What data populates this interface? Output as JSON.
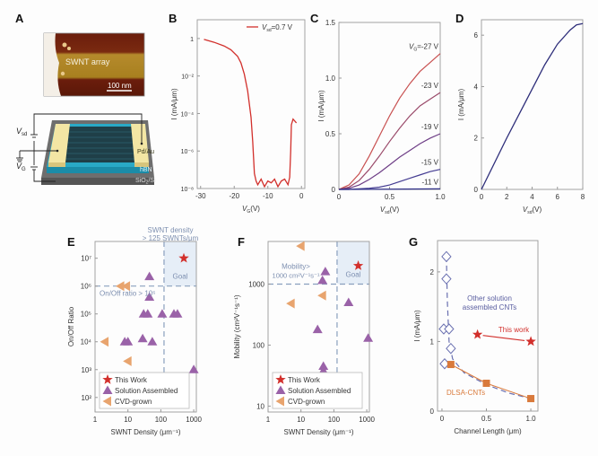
{
  "panels": {
    "A": {
      "letter": "A",
      "afm_label": "SWNT array",
      "scale_bar": "100 nm",
      "device_labels": {
        "vsd": "V",
        "vsd_sub": "sd",
        "vg": "V",
        "vg_sub": "G",
        "electrode": "Pd/Au",
        "dielectric": "hBN",
        "substrate": "SiO",
        "substrate_sub": "2",
        "substrate_rest": "/Si"
      }
    },
    "B": {
      "letter": "B"
    },
    "C": {
      "letter": "C"
    },
    "D": {
      "letter": "D"
    },
    "E": {
      "letter": "E"
    },
    "F": {
      "letter": "F"
    },
    "G": {
      "letter": "G"
    }
  },
  "colors": {
    "red": "#d2302c",
    "purple": "#9a62a8",
    "orange": "#e8a46e",
    "blue": "#6a70b0",
    "goal_fill": "#e6eef7",
    "dash": "#8aa0be",
    "square": "#d97a3c"
  },
  "chart_data": [
    {
      "id": "B",
      "type": "line",
      "xlabel": "V",
      "xlabel_sub": "G",
      "xlabel_unit": "(V)",
      "ylabel": "I (mA/μm)",
      "yscale": "log",
      "xlim": [
        -31,
        1
      ],
      "ylim_exp": [
        -8,
        1
      ],
      "xticks": [
        -30,
        -20,
        -10,
        0
      ],
      "yticks": [
        {
          "exp": 0,
          "label": "1"
        },
        {
          "exp": -2,
          "label": "10⁻²"
        },
        {
          "exp": -4,
          "label": "10⁻⁴"
        },
        {
          "exp": -6,
          "label": "10⁻⁶"
        },
        {
          "exp": -8,
          "label": "10⁻⁸"
        }
      ],
      "legend": "V_sd=0.7 V",
      "legend_text": "=0.7 V",
      "series": [
        {
          "name": "Vsd=0.7 V",
          "x": [
            -29,
            -26,
            -23,
            -21,
            -19,
            -18,
            -17,
            -16,
            -15,
            -14.5,
            -14,
            -13.5,
            -13,
            -12,
            -11,
            -10,
            -9,
            -8,
            -7,
            -6,
            -5,
            -4,
            -3.5,
            -3.2,
            -3,
            -2.5,
            -2,
            -1.5
          ],
          "log_y": [
            -0.05,
            -0.2,
            -0.4,
            -0.6,
            -0.95,
            -1.3,
            -1.9,
            -2.8,
            -4.2,
            -5.5,
            -7.2,
            -7.6,
            -7.8,
            -7.5,
            -7.9,
            -7.6,
            -7.7,
            -7.5,
            -7.9,
            -7.6,
            -7.5,
            -7.8,
            -7.4,
            -6,
            -4.6,
            -4.3,
            -4.4,
            -4.5
          ]
        }
      ]
    },
    {
      "id": "C",
      "type": "line",
      "xlabel": "V",
      "xlabel_sub": "sd",
      "xlabel_unit": "(V)",
      "ylabel": "I (mA/μm)",
      "xlim": [
        0,
        1.0
      ],
      "ylim": [
        0,
        1.5
      ],
      "xticks": [
        "0",
        "0.5",
        "1.0"
      ],
      "yticks": [
        "0",
        "0.5",
        "1.0",
        "1.5"
      ],
      "series": [
        {
          "name": "VG=-27 V",
          "label": "=-27 V",
          "label_prefix": "V",
          "label_sub": "G",
          "x": [
            0,
            0.1,
            0.2,
            0.3,
            0.4,
            0.5,
            0.6,
            0.7,
            0.8,
            0.9,
            1.0
          ],
          "y": [
            0,
            0.04,
            0.14,
            0.3,
            0.48,
            0.66,
            0.82,
            0.95,
            1.06,
            1.14,
            1.22
          ]
        },
        {
          "name": "VG=-23 V",
          "label": "-23 V",
          "x": [
            0,
            0.1,
            0.2,
            0.3,
            0.4,
            0.5,
            0.6,
            0.7,
            0.8,
            0.9,
            1.0
          ],
          "y": [
            0,
            0.02,
            0.08,
            0.18,
            0.3,
            0.43,
            0.55,
            0.66,
            0.75,
            0.81,
            0.87
          ]
        },
        {
          "name": "VG=-19 V",
          "label": "-19 V",
          "x": [
            0,
            0.1,
            0.2,
            0.3,
            0.4,
            0.5,
            0.6,
            0.7,
            0.8,
            0.9,
            1.0
          ],
          "y": [
            0,
            0.01,
            0.04,
            0.09,
            0.15,
            0.22,
            0.29,
            0.35,
            0.41,
            0.46,
            0.5
          ]
        },
        {
          "name": "VG=-15 V",
          "label": "-15 V",
          "x": [
            0,
            0.1,
            0.2,
            0.3,
            0.4,
            0.5,
            0.6,
            0.7,
            0.8,
            0.9,
            1.0
          ],
          "y": [
            0,
            0.0,
            0.005,
            0.01,
            0.02,
            0.04,
            0.07,
            0.1,
            0.13,
            0.16,
            0.18
          ]
        },
        {
          "name": "VG=-11 V",
          "label": "-11 V",
          "x": [
            0,
            0.5,
            1.0
          ],
          "y": [
            0,
            0.002,
            0.005
          ]
        }
      ]
    },
    {
      "id": "D",
      "type": "line",
      "xlabel": "V",
      "xlabel_sub": "sd",
      "xlabel_unit": "(V)",
      "ylabel": "I (mA/μm)",
      "xlim": [
        0,
        8
      ],
      "ylim": [
        0,
        6.6
      ],
      "xticks": [
        "0",
        "2",
        "4",
        "6",
        "8"
      ],
      "yticks": [
        "0",
        "2",
        "4",
        "6"
      ],
      "series": [
        {
          "name": "I-Vsd",
          "x": [
            0,
            1,
            2,
            3,
            4,
            5,
            6,
            7,
            7.5,
            8
          ],
          "y": [
            0,
            1.0,
            2.0,
            2.95,
            3.9,
            4.85,
            5.65,
            6.2,
            6.4,
            6.45
          ]
        }
      ]
    },
    {
      "id": "E",
      "type": "scatter",
      "xlabel": "SWNT Density (μm⁻¹)",
      "ylabel": "On/Off Ratio",
      "xscale": "log",
      "yscale": "log",
      "xlim": [
        1,
        1200
      ],
      "ylim": [
        30,
        40000000
      ],
      "xticks": [
        "1",
        "10",
        "100",
        "1000"
      ],
      "yticks": [
        {
          "v": 100,
          "label": "10²"
        },
        {
          "v": 1000,
          "label": "10³"
        },
        {
          "v": 10000,
          "label": "10⁴"
        },
        {
          "v": 100000,
          "label": "10⁵"
        },
        {
          "v": 1000000,
          "label": "10⁶"
        },
        {
          "v": 10000000,
          "label": "10⁷"
        }
      ],
      "threshold_x": 125,
      "threshold_y": 1000000,
      "annotations": {
        "density": "SWNT density",
        "density2": "> 125 SWNTs/μm",
        "ratio": "On/Off ratio > 10⁶",
        "goal": "Goal"
      },
      "legend": [
        "This Work",
        "Solution Assembled",
        "CVD-grown"
      ],
      "series": [
        {
          "name": "This Work",
          "marker": "star",
          "points": [
            [
              500,
              10000000
            ]
          ]
        },
        {
          "name": "Solution Assembled",
          "marker": "triangle",
          "points": [
            [
              45,
              2200000
            ],
            [
              45,
              400000
            ],
            [
              30,
              100000
            ],
            [
              40,
              100000
            ],
            [
              110,
              100000
            ],
            [
              250,
              100000
            ],
            [
              320,
              100000
            ],
            [
              8,
              10000
            ],
            [
              10,
              10000
            ],
            [
              28,
              13000
            ],
            [
              55,
              10000
            ],
            [
              1000,
              1000
            ]
          ]
        },
        {
          "name": "CVD-grown",
          "marker": "triangle-left",
          "points": [
            [
              6,
              1000000
            ],
            [
              9,
              1000000
            ],
            [
              2,
              10000
            ],
            [
              10,
              2000
            ]
          ]
        }
      ]
    },
    {
      "id": "F",
      "type": "scatter",
      "xlabel": "SWNT Density (μm⁻¹)",
      "ylabel": "Mobility (cm²V⁻¹s⁻¹)",
      "xscale": "log",
      "yscale": "log",
      "xlim": [
        1,
        1200
      ],
      "ylim": [
        8,
        5000
      ],
      "xticks": [
        "1",
        "10",
        "100",
        "1000"
      ],
      "yticks": [
        {
          "v": 10,
          "label": "10"
        },
        {
          "v": 100,
          "label": "100"
        },
        {
          "v": 1000,
          "label": "1000"
        }
      ],
      "threshold_x": 125,
      "threshold_y": 1000,
      "annotations": {
        "mob1": "Mobility>",
        "mob2": "1000 cm²V⁻¹s⁻¹",
        "goal": "Goal"
      },
      "legend": [
        "This Work",
        "Solution Assembled",
        "CVD-grown"
      ],
      "series": [
        {
          "name": "This Work",
          "marker": "star",
          "points": [
            [
              550,
              2000
            ]
          ]
        },
        {
          "name": "Solution Assembled",
          "marker": "triangle",
          "points": [
            [
              55,
              1600
            ],
            [
              45,
              1150
            ],
            [
              280,
              500
            ],
            [
              32,
              180
            ],
            [
              1100,
              130
            ],
            [
              48,
              45
            ],
            [
              48,
              38
            ]
          ]
        },
        {
          "name": "CVD-grown",
          "marker": "triangle-left",
          "points": [
            [
              10,
              4200
            ],
            [
              45,
              650
            ],
            [
              5,
              480
            ]
          ]
        }
      ]
    },
    {
      "id": "G",
      "type": "line",
      "xlabel": "Channel Length (μm)",
      "ylabel": "I (mA/μm)",
      "xlim": [
        -0.05,
        1.08
      ],
      "ylim": [
        0,
        2.45
      ],
      "xticks": [
        "0",
        "0.5",
        "1.0"
      ],
      "yticks": [
        "0",
        "1",
        "2"
      ],
      "annotations": {
        "other1": "Other solution",
        "other2": "assembled CNTs",
        "this": "This work",
        "dlsa": "DLSA-CNTs"
      },
      "series": [
        {
          "name": "Other solution assembled CNTs",
          "marker": "diamond",
          "dashed": true,
          "x": [
            0.05,
            0.05,
            0.02,
            0.08,
            0.1,
            0.03
          ],
          "y": [
            2.22,
            1.9,
            1.18,
            1.18,
            0.9,
            0.68
          ],
          "trend_x": [
            0.05,
            0.06,
            0.08,
            0.12,
            0.25,
            0.5,
            0.75,
            1.0
          ],
          "trend_y": [
            2.22,
            1.6,
            1.0,
            0.75,
            0.55,
            0.38,
            0.26,
            0.18
          ]
        },
        {
          "name": "This work",
          "marker": "star",
          "x": [
            0.4,
            1.0
          ],
          "y": [
            1.1,
            1.0
          ]
        },
        {
          "name": "DLSA-CNTs",
          "marker": "square",
          "x": [
            0.1,
            0.5,
            1.0
          ],
          "y": [
            0.67,
            0.4,
            0.18
          ]
        }
      ]
    }
  ]
}
